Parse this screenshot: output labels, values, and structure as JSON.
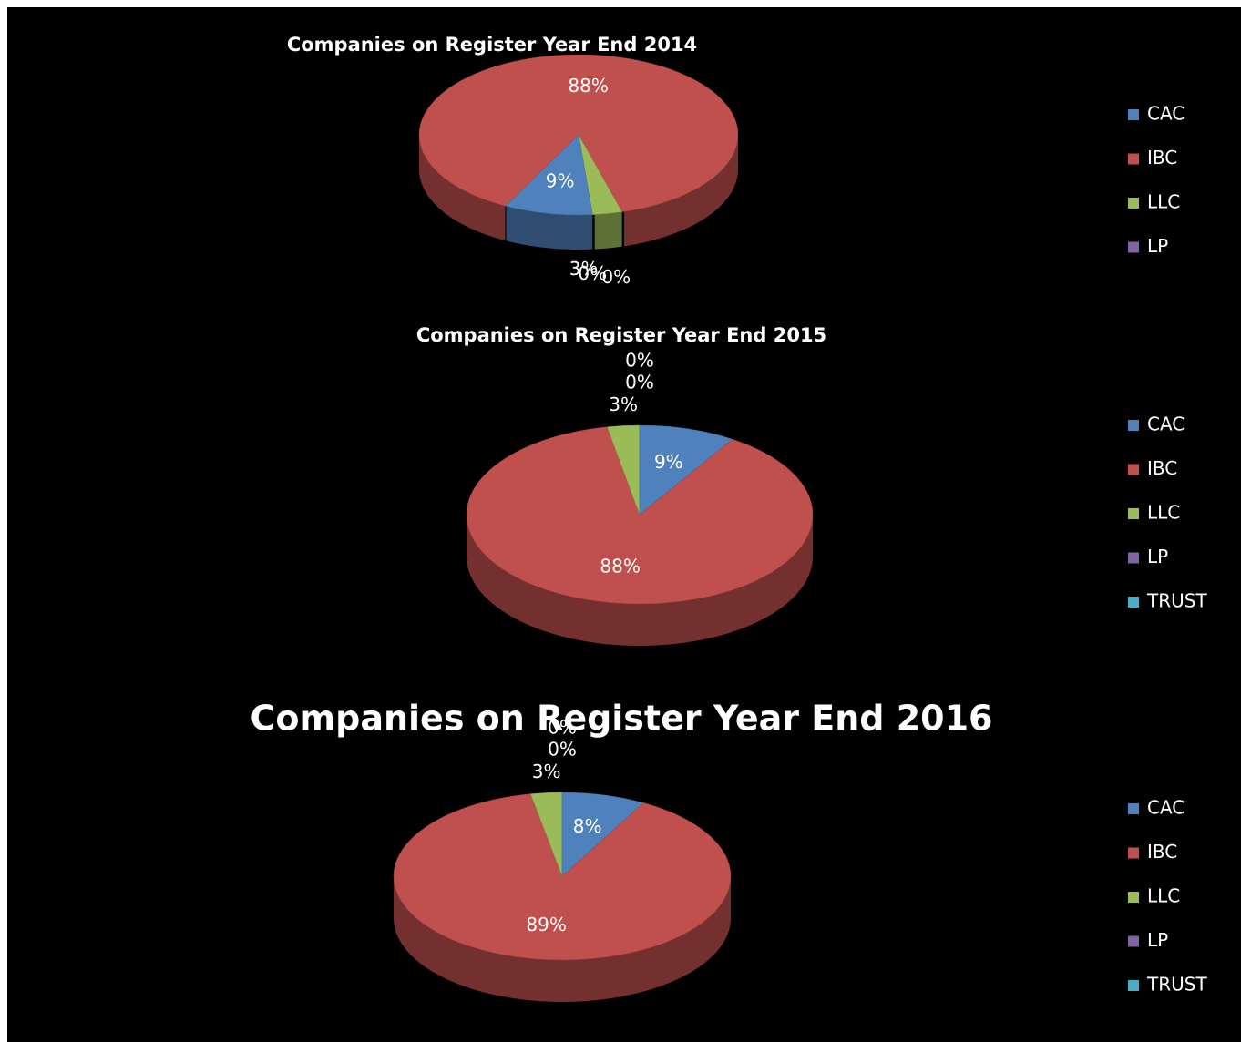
{
  "chart_data": [
    {
      "type": "pie",
      "title": "Companies on Register Year End 2014",
      "categories": [
        "CAC",
        "IBC",
        "LLC",
        "LP",
        null
      ],
      "values": [
        9,
        88,
        3,
        0,
        0
      ],
      "value_labels": [
        "9%",
        "88%",
        "3%",
        "0%",
        "0%"
      ],
      "colors": [
        "#4f81bd",
        "#c0504d",
        "#9bbb59",
        "#8064a2",
        "#4bacc6"
      ],
      "legend": "right"
    },
    {
      "type": "pie",
      "title": "Companies on Register Year End 2015",
      "categories": [
        "CAC",
        "IBC",
        "LLC",
        "LP",
        "TRUST"
      ],
      "values": [
        9,
        88,
        3,
        0,
        0
      ],
      "value_labels": [
        "9%",
        "88%",
        "3%",
        "0%",
        "0%"
      ],
      "colors": [
        "#4f81bd",
        "#c0504d",
        "#9bbb59",
        "#8064a2",
        "#4bacc6"
      ],
      "legend": "right"
    },
    {
      "type": "pie",
      "title": "Companies on Register Year End 2016",
      "categories": [
        "CAC",
        "IBC",
        "LLC",
        "LP",
        "TRUST"
      ],
      "values": [
        8,
        89,
        3,
        0,
        0
      ],
      "value_labels": [
        "8%",
        "89%",
        "3%",
        "0%",
        "0%"
      ],
      "colors": [
        "#4f81bd",
        "#c0504d",
        "#9bbb59",
        "#8064a2",
        "#4bacc6"
      ],
      "legend": "right"
    }
  ]
}
